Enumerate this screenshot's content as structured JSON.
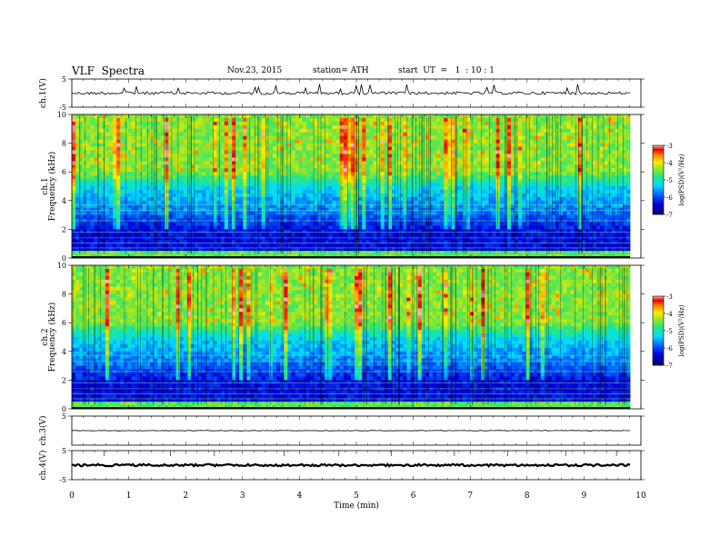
{
  "header": {
    "title": "VLF  Spectra",
    "date": "Nov.23, 2015",
    "station": "station= ATH",
    "start": "start  UT  =   1  : 10 : 1"
  },
  "chart_data": {
    "type": "heatmap",
    "x_label": "Time  (min)",
    "x_range": [
      0,
      10
    ],
    "x_ticks": [
      "0",
      "1",
      "2",
      "3",
      "4",
      "5",
      "6",
      "7",
      "8",
      "9",
      "10"
    ],
    "panels": [
      {
        "id": "ch1v",
        "kind": "line",
        "ylabel": "ch.1(V)",
        "ylim": [
          -5,
          5
        ],
        "yticks": [
          "5",
          "-5"
        ],
        "trace_level": 0
      },
      {
        "id": "ch1spec",
        "kind": "spectrogram",
        "channel_label": "ch.1",
        "ylabel": "Frequency  (kHz)",
        "ylim": [
          0,
          10
        ],
        "yticks": [
          "0",
          "2",
          "4",
          "6",
          "8",
          "10"
        ],
        "colorbar": {
          "label": "log(PSD)(V²/Hz)",
          "range": [
            -7,
            -3
          ],
          "ticks": [
            "-3",
            "-4",
            "-5",
            "-6",
            "-7"
          ]
        }
      },
      {
        "id": "ch2spec",
        "kind": "spectrogram",
        "channel_label": "ch.2",
        "ylabel": "Frequency  (kHz)",
        "ylim": [
          0,
          10
        ],
        "yticks": [
          "0",
          "2",
          "4",
          "6",
          "8",
          "10"
        ],
        "colorbar": {
          "label": "log(PSD)(V²/Hz)",
          "range": [
            -7,
            -3
          ],
          "ticks": [
            "-3",
            "-4",
            "-5",
            "-6",
            "-7"
          ]
        }
      },
      {
        "id": "ch3v",
        "kind": "line",
        "ylabel": "ch.3(V)",
        "ylim": [
          -5,
          5
        ],
        "yticks": [
          "5"
        ],
        "trace_level": 0
      },
      {
        "id": "ch4v",
        "kind": "line",
        "ylabel": "ch.4(V)",
        "ylim": [
          -5,
          5
        ],
        "yticks": [
          "5",
          "-5"
        ],
        "trace_level": 0
      }
    ]
  }
}
